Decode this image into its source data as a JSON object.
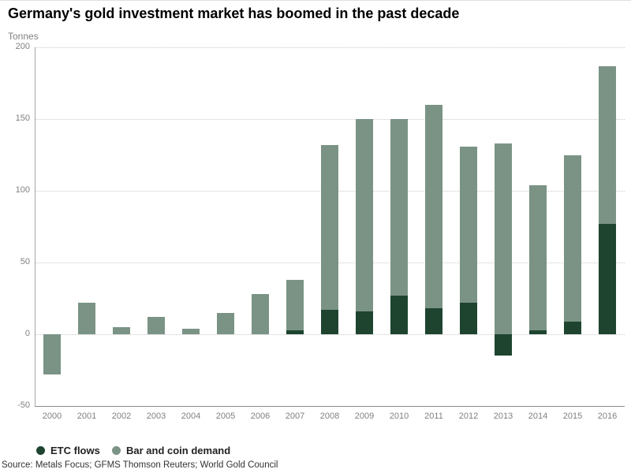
{
  "title": "Germany's gold investment market has boomed in the past decade",
  "unit_label": "Tonnes",
  "source": "Source: Metals Focus; GFMS Thomson Reuters; World Gold Council",
  "colors": {
    "etc_flows": "#1E4430",
    "bar_and_coin": "#7A9385",
    "axis_text": "#808080",
    "gridline": "#C8C8C8"
  },
  "legend": [
    {
      "label": "ETC flows",
      "color": "#1E4430"
    },
    {
      "label": "Bar and coin demand",
      "color": "#7A9385"
    }
  ],
  "chart_data": {
    "type": "bar",
    "stacked": true,
    "title": "Germany's gold investment market has boomed in the past decade",
    "xlabel": "",
    "ylabel": "Tonnes",
    "categories": [
      "2000",
      "2001",
      "2002",
      "2003",
      "2004",
      "2005",
      "2006",
      "2007",
      "2008",
      "2009",
      "2010",
      "2011",
      "2012",
      "2013",
      "2014",
      "2015",
      "2016"
    ],
    "series": [
      {
        "name": "ETC flows",
        "color": "#1E4430",
        "values": [
          0,
          0,
          0,
          0,
          0,
          0,
          0,
          3,
          17,
          16,
          27,
          18,
          22,
          -15,
          3,
          9,
          77
        ]
      },
      {
        "name": "Bar and coin demand",
        "color": "#7A9385",
        "values": [
          -28,
          22,
          5,
          12,
          4,
          15,
          28,
          35,
          115,
          134,
          123,
          142,
          109,
          133,
          101,
          116,
          110
        ]
      }
    ],
    "ylim": [
      -50,
      200
    ],
    "yticks": [
      200,
      150,
      100,
      50,
      0,
      -50
    ],
    "grid": "horizontal-dotted",
    "legend_position": "bottom-left"
  }
}
